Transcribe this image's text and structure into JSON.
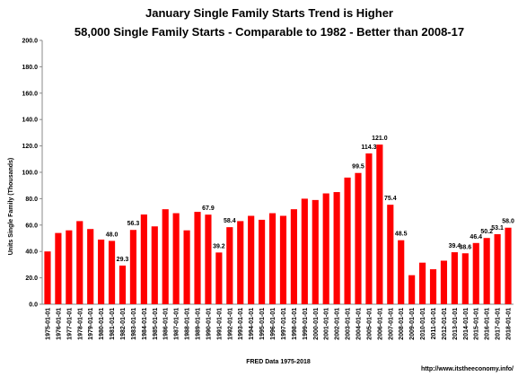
{
  "chart_data": {
    "type": "bar",
    "title": "January Single Family Starts Trend is Higher",
    "subtitle": "58,000 Single Family Starts - Comparable to 1982 - Better than 2008-17",
    "x_label": "FRED  Data 1975-2018",
    "y_label": "Units Single Family (Thousands)",
    "source": "http://www.itstheeconomy.info/",
    "categories": [
      "1975-01-01",
      "1976-01-01",
      "1977-01-01",
      "1978-01-01",
      "1979-01-01",
      "1980-01-01",
      "1981-01-01",
      "1982-01-01",
      "1983-01-01",
      "1984-01-01",
      "1985-01-01",
      "1986-01-01",
      "1987-01-01",
      "1988-01-01",
      "1989-01-01",
      "1990-01-01",
      "1991-01-01",
      "1992-01-01",
      "1993-01-01",
      "1994-01-01",
      "1995-01-01",
      "1996-01-01",
      "1997-01-01",
      "1998-01-01",
      "1999-01-01",
      "2000-01-01",
      "2001-01-01",
      "2002-01-01",
      "2003-01-01",
      "2004-01-01",
      "2005-01-01",
      "2006-01-01",
      "2007-01-01",
      "2008-01-01",
      "2009-01-01",
      "2010-01-01",
      "2011-01-01",
      "2012-01-01",
      "2013-01-01",
      "2014-01-01",
      "2015-01-01",
      "2016-01-01",
      "2017-01-01",
      "2018-01-01"
    ],
    "values": [
      40,
      54,
      56,
      63,
      57,
      49,
      48,
      29.3,
      56.3,
      68,
      59,
      72,
      69,
      56,
      70,
      67.9,
      39.2,
      58.4,
      63,
      67,
      64,
      69,
      67,
      72,
      80,
      79,
      84,
      85,
      96,
      99.5,
      114.3,
      121,
      75.4,
      48.5,
      22,
      31.5,
      26.5,
      33,
      39.4,
      38.6,
      46.4,
      50.2,
      53.1,
      58
    ],
    "value_labels": [
      null,
      null,
      null,
      null,
      null,
      null,
      "48.0",
      "29.3",
      "56.3",
      null,
      null,
      null,
      null,
      null,
      null,
      "67.9",
      "39.2",
      "58.4",
      null,
      null,
      null,
      null,
      null,
      null,
      null,
      null,
      null,
      null,
      null,
      "99.5",
      "114.3",
      "121.0",
      "75.4",
      "48.5",
      null,
      null,
      null,
      null,
      "39.4",
      "38.6",
      "46.4",
      "50.2",
      "53.1",
      "58.0"
    ],
    "color": "#ff0000",
    "ylim": [
      0,
      200
    ],
    "yticks": [
      {
        "value": 0,
        "label": "0.0"
      },
      {
        "value": 20,
        "label": "20.0"
      },
      {
        "value": 40,
        "label": "40.0"
      },
      {
        "value": 60,
        "label": "60.0"
      },
      {
        "value": 80,
        "label": "80.0"
      },
      {
        "value": 100,
        "label": "100.0"
      },
      {
        "value": 120,
        "label": "120.0"
      },
      {
        "value": 140,
        "label": "140.0"
      },
      {
        "value": 160,
        "label": "160.0"
      },
      {
        "value": 180,
        "label": "180.0"
      },
      {
        "value": 200,
        "label": "200.0"
      }
    ],
    "grid": false
  }
}
